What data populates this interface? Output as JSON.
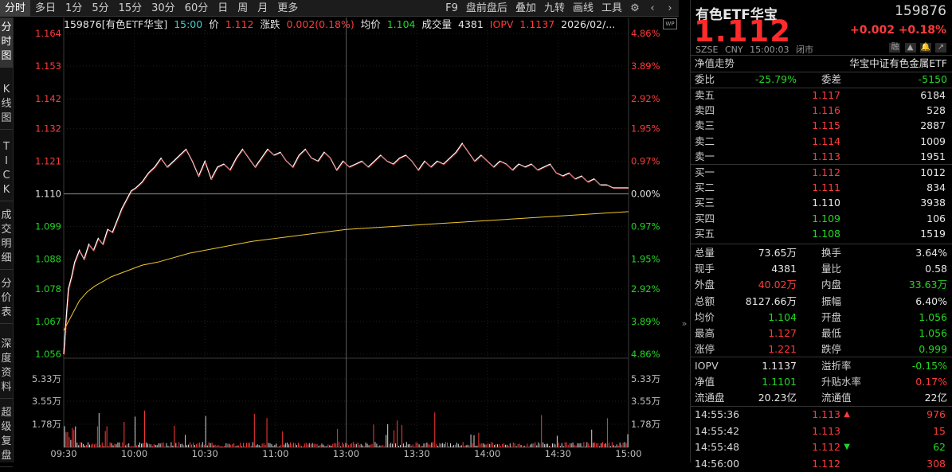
{
  "toolbar": {
    "timeframes": [
      "分时",
      "多日",
      "1分",
      "5分",
      "15分",
      "30分",
      "60分",
      "日",
      "周",
      "月",
      "更多"
    ],
    "active_timeframe": "分时",
    "right_items": [
      "F9",
      "盘前盘后",
      "叠加",
      "九转",
      "画线",
      "工具"
    ],
    "icons": [
      "gear-icon",
      "chevron-left-icon",
      "chevron-right-icon"
    ]
  },
  "left_tabs": [
    "分时图",
    "K线图",
    "TICK",
    "成交明细",
    "分价表",
    "深度资料",
    "超级复盘"
  ],
  "info": {
    "code_name": "159876[有色ETF华宝]",
    "time": "15:00",
    "price_label": "价",
    "price": "1.112",
    "change_label": "涨跌",
    "change": "0.002(0.18%)",
    "avg_label": "均价",
    "avg": "1.104",
    "volume_label": "成交量",
    "volume": "4381",
    "iopv_label": "IOPV",
    "iopv": "1.1137",
    "date": "2026/02/..."
  },
  "chart_data": {
    "type": "line",
    "prev_close": 1.11,
    "y_ticks": [
      "1.164",
      "1.153",
      "1.142",
      "1.132",
      "1.121",
      "1.110",
      "1.099",
      "1.088",
      "1.078",
      "1.067",
      "1.056"
    ],
    "pct_ticks": [
      "4.86%",
      "3.89%",
      "2.92%",
      "1.95%",
      "0.97%",
      "0.00%",
      "0.97%",
      "1.95%",
      "2.92%",
      "3.89%",
      "4.86%"
    ],
    "ylim": [
      1.056,
      1.164
    ],
    "x_ticks": [
      "09:30",
      "10:00",
      "10:30",
      "11:00",
      "13:00",
      "13:30",
      "14:00",
      "14:30",
      "15:00"
    ],
    "vol_ticks": [
      "5.33万",
      "3.55万",
      "1.78万"
    ],
    "vol_max": 62200,
    "series": [
      {
        "name": "价格",
        "color": "#ffffff",
        "points": [
          [
            0,
            1.056
          ],
          [
            1,
            1.064
          ],
          [
            2,
            1.071
          ],
          [
            3,
            1.078
          ],
          [
            5,
            1.082
          ],
          [
            7,
            1.087
          ],
          [
            10,
            1.091
          ],
          [
            13,
            1.088
          ],
          [
            16,
            1.093
          ],
          [
            19,
            1.091
          ],
          [
            22,
            1.095
          ],
          [
            25,
            1.093
          ],
          [
            28,
            1.098
          ],
          [
            31,
            1.097
          ],
          [
            34,
            1.101
          ],
          [
            37,
            1.105
          ],
          [
            40,
            1.108
          ],
          [
            43,
            1.111
          ],
          [
            46,
            1.112
          ],
          [
            50,
            1.114
          ],
          [
            54,
            1.117
          ],
          [
            58,
            1.119
          ],
          [
            62,
            1.122
          ],
          [
            66,
            1.119
          ],
          [
            70,
            1.121
          ],
          [
            74,
            1.123
          ],
          [
            78,
            1.125
          ],
          [
            82,
            1.121
          ],
          [
            86,
            1.116
          ],
          [
            90,
            1.121
          ],
          [
            94,
            1.115
          ],
          [
            98,
            1.119
          ],
          [
            102,
            1.12
          ],
          [
            106,
            1.118
          ],
          [
            110,
            1.122
          ],
          [
            114,
            1.125
          ],
          [
            118,
            1.122
          ],
          [
            122,
            1.119
          ],
          [
            126,
            1.122
          ],
          [
            130,
            1.125
          ],
          [
            134,
            1.123
          ],
          [
            138,
            1.124
          ],
          [
            142,
            1.121
          ],
          [
            146,
            1.119
          ],
          [
            150,
            1.123
          ],
          [
            154,
            1.125
          ],
          [
            158,
            1.122
          ],
          [
            162,
            1.121
          ],
          [
            166,
            1.124
          ],
          [
            170,
            1.122
          ],
          [
            174,
            1.118
          ],
          [
            178,
            1.121
          ],
          [
            182,
            1.119
          ],
          [
            186,
            1.12
          ],
          [
            190,
            1.121
          ],
          [
            194,
            1.119
          ],
          [
            198,
            1.121
          ],
          [
            202,
            1.123
          ],
          [
            206,
            1.121
          ],
          [
            210,
            1.12
          ],
          [
            214,
            1.122
          ],
          [
            218,
            1.123
          ],
          [
            222,
            1.121
          ],
          [
            226,
            1.118
          ],
          [
            230,
            1.121
          ],
          [
            234,
            1.119
          ],
          [
            238,
            1.121
          ],
          [
            242,
            1.12
          ],
          [
            246,
            1.122
          ],
          [
            250,
            1.124
          ],
          [
            254,
            1.127
          ],
          [
            258,
            1.124
          ],
          [
            262,
            1.121
          ],
          [
            266,
            1.123
          ],
          [
            270,
            1.121
          ],
          [
            274,
            1.119
          ],
          [
            278,
            1.121
          ],
          [
            282,
            1.12
          ],
          [
            286,
            1.118
          ],
          [
            290,
            1.12
          ],
          [
            294,
            1.119
          ],
          [
            298,
            1.12
          ],
          [
            302,
            1.118
          ],
          [
            306,
            1.119
          ],
          [
            310,
            1.12
          ],
          [
            314,
            1.117
          ],
          [
            318,
            1.116
          ],
          [
            322,
            1.117
          ],
          [
            326,
            1.115
          ],
          [
            330,
            1.116
          ],
          [
            334,
            1.114
          ],
          [
            338,
            1.115
          ],
          [
            342,
            1.113
          ],
          [
            346,
            1.113
          ],
          [
            350,
            1.112
          ],
          [
            354,
            1.112
          ],
          [
            360,
            1.112
          ]
        ]
      },
      {
        "name": "均价",
        "color": "#f0c830",
        "points": [
          [
            0,
            1.064
          ],
          [
            5,
            1.069
          ],
          [
            10,
            1.074
          ],
          [
            15,
            1.077
          ],
          [
            20,
            1.079
          ],
          [
            30,
            1.082
          ],
          [
            40,
            1.084
          ],
          [
            50,
            1.086
          ],
          [
            60,
            1.087
          ],
          [
            80,
            1.09
          ],
          [
            100,
            1.092
          ],
          [
            120,
            1.094
          ],
          [
            150,
            1.096
          ],
          [
            180,
            1.098
          ],
          [
            210,
            1.099
          ],
          [
            240,
            1.1
          ],
          [
            270,
            1.101
          ],
          [
            300,
            1.102
          ],
          [
            330,
            1.103
          ],
          [
            360,
            1.104
          ]
        ]
      }
    ]
  },
  "quote": {
    "name": "有色ETF华宝",
    "code": "159876",
    "last": "1.112",
    "change": "+0.002",
    "change_pct": "+0.18%",
    "exchange": "SZSE",
    "currency": "CNY",
    "time": "15:00:03",
    "status": "闭市",
    "small_buttons": [
      "融",
      "▲",
      "🔔",
      "↗"
    ],
    "nav_label": "净值走势",
    "index_name": "华宝中证有色金属ETF",
    "weibi_label": "委比",
    "weibi": "-25.79%",
    "weicha_label": "委差",
    "weicha": "-5150"
  },
  "order_book": {
    "asks": [
      {
        "label": "卖五",
        "price": "1.117",
        "qty": "6184"
      },
      {
        "label": "卖四",
        "price": "1.116",
        "qty": "528"
      },
      {
        "label": "卖三",
        "price": "1.115",
        "qty": "2887"
      },
      {
        "label": "卖二",
        "price": "1.114",
        "qty": "1009"
      },
      {
        "label": "卖一",
        "price": "1.113",
        "qty": "1951"
      }
    ],
    "bids": [
      {
        "label": "买一",
        "price": "1.112",
        "qty": "1012"
      },
      {
        "label": "买二",
        "price": "1.111",
        "qty": "834"
      },
      {
        "label": "买三",
        "price": "1.110",
        "qty": "3938"
      },
      {
        "label": "买四",
        "price": "1.109",
        "qty": "106"
      },
      {
        "label": "买五",
        "price": "1.108",
        "qty": "1519"
      }
    ]
  },
  "stats": [
    {
      "k1": "总量",
      "v1": "73.65万",
      "c1": "white",
      "k2": "换手",
      "v2": "3.64%",
      "c2": "white"
    },
    {
      "k1": "现手",
      "v1": "4381",
      "c1": "white",
      "k2": "量比",
      "v2": "0.58",
      "c2": "white"
    },
    {
      "k1": "外盘",
      "v1": "40.02万",
      "c1": "red",
      "k2": "内盘",
      "v2": "33.63万",
      "c2": "green"
    },
    {
      "k1": "总额",
      "v1": "8127.66万",
      "c1": "white",
      "k2": "振幅",
      "v2": "6.40%",
      "c2": "white"
    },
    {
      "k1": "均价",
      "v1": "1.104",
      "c1": "green",
      "k2": "开盘",
      "v2": "1.056",
      "c2": "green"
    },
    {
      "k1": "最高",
      "v1": "1.127",
      "c1": "red",
      "k2": "最低",
      "v2": "1.056",
      "c2": "green"
    },
    {
      "k1": "涨停",
      "v1": "1.221",
      "c1": "red",
      "k2": "跌停",
      "v2": "0.999",
      "c2": "green"
    }
  ],
  "stats2": [
    {
      "k1": "IOPV",
      "v1": "1.1137",
      "c1": "white",
      "k2": "溢折率",
      "v2": "-0.15%",
      "c2": "green"
    },
    {
      "k1": "净值",
      "v1": "1.1101",
      "c1": "green",
      "k2": "升贴水率",
      "v2": "0.17%",
      "c2": "red"
    },
    {
      "k1": "流通盘",
      "v1": "20.23亿",
      "c1": "white",
      "k2": "流通值",
      "v2": "22亿",
      "c2": "white"
    }
  ],
  "ticks": [
    {
      "time": "14:55:36",
      "price": "1.113",
      "arrow": "up",
      "vol": "976",
      "pc": "red",
      "vc": "red"
    },
    {
      "time": "14:55:42",
      "price": "1.113",
      "arrow": "",
      "vol": "15",
      "pc": "red",
      "vc": "red"
    },
    {
      "time": "14:55:48",
      "price": "1.112",
      "arrow": "down",
      "vol": "62",
      "pc": "red",
      "vc": "green"
    },
    {
      "time": "14:56:00",
      "price": "1.112",
      "arrow": "",
      "vol": "308",
      "pc": "red",
      "vc": "red"
    }
  ],
  "colors": {
    "up": "#ff3b3b",
    "down": "#23d623",
    "flat": "#e6e6e6",
    "avg": "#f0c830",
    "grid": "#2a2a2a",
    "axis_text_up": "#ff3b3b",
    "axis_text_down": "#23d623"
  }
}
